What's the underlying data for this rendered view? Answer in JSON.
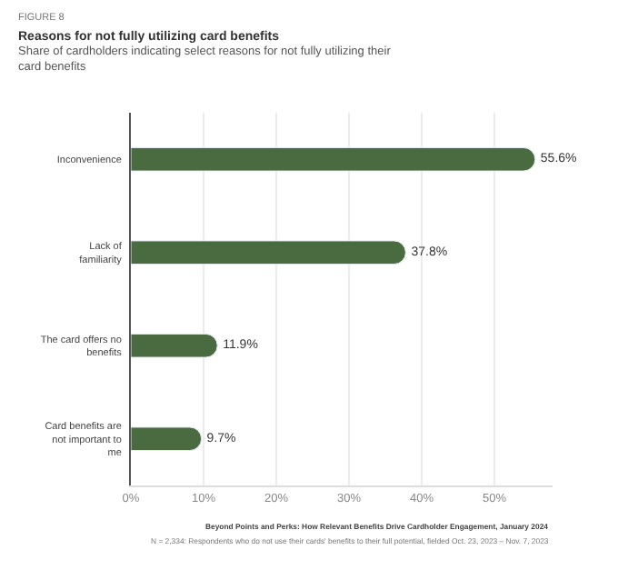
{
  "chart_data": {
    "type": "bar",
    "orientation": "horizontal",
    "title": "Reasons for not fully utilizing card benefits",
    "subtitle": "Share of cardholders indicating select reasons for not fully utilizing their card benefits",
    "categories": [
      "Inconvenience",
      "Lack of familiarity",
      "The card offers no benefits",
      "Card benefits are not important to me"
    ],
    "values": [
      55.6,
      37.8,
      11.9,
      9.7
    ],
    "color": "#4a6b3f",
    "value_labels": [
      "55.6%",
      "37.8%",
      "11.9%",
      "9.7%"
    ],
    "xlim": [
      0,
      58
    ],
    "xticks": [
      {
        "value": 0,
        "label": "0%"
      },
      {
        "value": 10,
        "label": "10%"
      },
      {
        "value": 20,
        "label": "20%"
      },
      {
        "value": 30,
        "label": "30%"
      },
      {
        "value": 40,
        "label": "40%"
      },
      {
        "value": 50,
        "label": "50%"
      }
    ],
    "grid": "x",
    "legend": false,
    "annotations": [
      "FIGURE 8",
      "Beyond Points and Perks: How Relevant Benefits Drive Cardholder Engagement, January 2024",
      "N = 2,334: Respondents who do not use their cards' benefits to their full potential, fielded Oct. 23, 2023 – Nov. 7, 2023"
    ]
  }
}
